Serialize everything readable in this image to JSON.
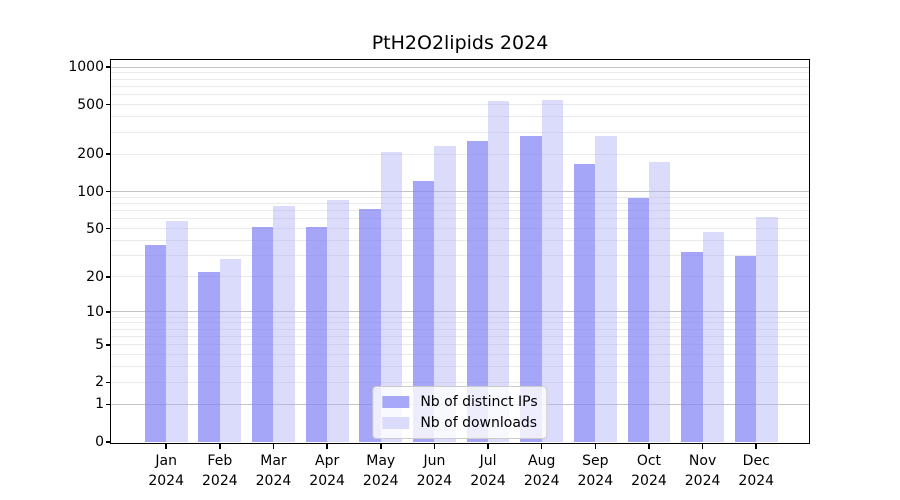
{
  "chart_data": {
    "type": "bar",
    "title": "PtH2O2lipids 2024",
    "categories": [
      "Jan",
      "Feb",
      "Mar",
      "Apr",
      "May",
      "Jun",
      "Jul",
      "Aug",
      "Sep",
      "Oct",
      "Nov",
      "Dec"
    ],
    "category_year": "2024",
    "series": [
      {
        "name": "Nb of distinct IPs",
        "color": "#a8a8f8",
        "fill": "rgba(131,131,245,0.72)",
        "values": [
          37,
          22,
          52,
          52,
          72,
          121,
          257,
          278,
          168,
          89,
          32,
          30
        ]
      },
      {
        "name": "Nb of downloads",
        "color": "#dbdbfc",
        "fill": "rgba(175,175,248,0.45)",
        "values": [
          58,
          28,
          77,
          85,
          210,
          233,
          538,
          542,
          278,
          172,
          47,
          62
        ]
      }
    ],
    "xlabel": "",
    "ylabel": "",
    "yscale": "log1p",
    "ylim": [
      0,
      1140
    ],
    "y_ticks": [
      0,
      1,
      2,
      5,
      10,
      20,
      50,
      100,
      200,
      500,
      1000
    ],
    "grid": {
      "on": true,
      "major_lines": [
        1,
        10,
        100,
        1000
      ],
      "minor_mantissas": [
        2,
        3,
        4,
        5,
        6,
        7,
        8,
        9
      ],
      "minor_decades": [
        1,
        10,
        100
      ]
    },
    "legend": {
      "position": "lower center",
      "entries": [
        "Nb of distinct IPs",
        "Nb of downloads"
      ]
    },
    "bar_width_fraction": 0.4
  },
  "colors": {
    "background": "#ffffff",
    "frame": "#000000",
    "text": "#000000",
    "grid_major": "#c4c4c4",
    "grid_minor": "#eaeaea",
    "legend_bg": "rgba(255,255,255,0.8)",
    "legend_border": "#cccccc"
  }
}
